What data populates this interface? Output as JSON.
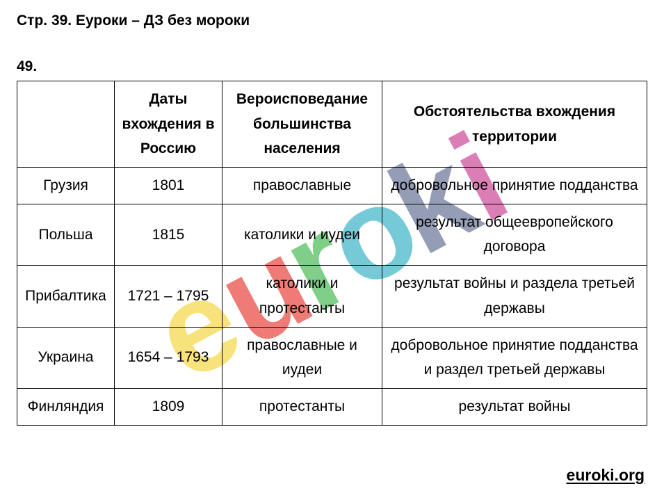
{
  "header": "Стр. 39. Еуроки – ДЗ без мороки",
  "exercise": "49.",
  "table": {
    "columns": [
      "",
      "Даты вхождения в Россию",
      "Вероисповедание большинства населения",
      "Обстоятельства вхождения территории"
    ],
    "rows": [
      [
        "Грузия",
        "1801",
        "православные",
        "добровольное принятие подданства"
      ],
      [
        "Польша",
        "1815",
        "католики и иудеи",
        "результат общеевропейского договора"
      ],
      [
        "Прибалтика",
        "1721 – 1795",
        "католики и протестанты",
        "результат войны и раздела третьей державы"
      ],
      [
        "Украина",
        "1654 – 1793",
        "православные и иудеи",
        "добровольное принятие подданства и раздел третьей державы"
      ],
      [
        "Финляндия",
        "1809",
        "протестанты",
        "результат войны"
      ]
    ]
  },
  "footer": "euroki.org",
  "watermark": {
    "colors": {
      "e": "#f5d435",
      "u": "#e8352e",
      "r": "#3cb64a",
      "o": "#2eafc4",
      "k": "#5b6a8f",
      "i": "#c73a8e"
    }
  }
}
